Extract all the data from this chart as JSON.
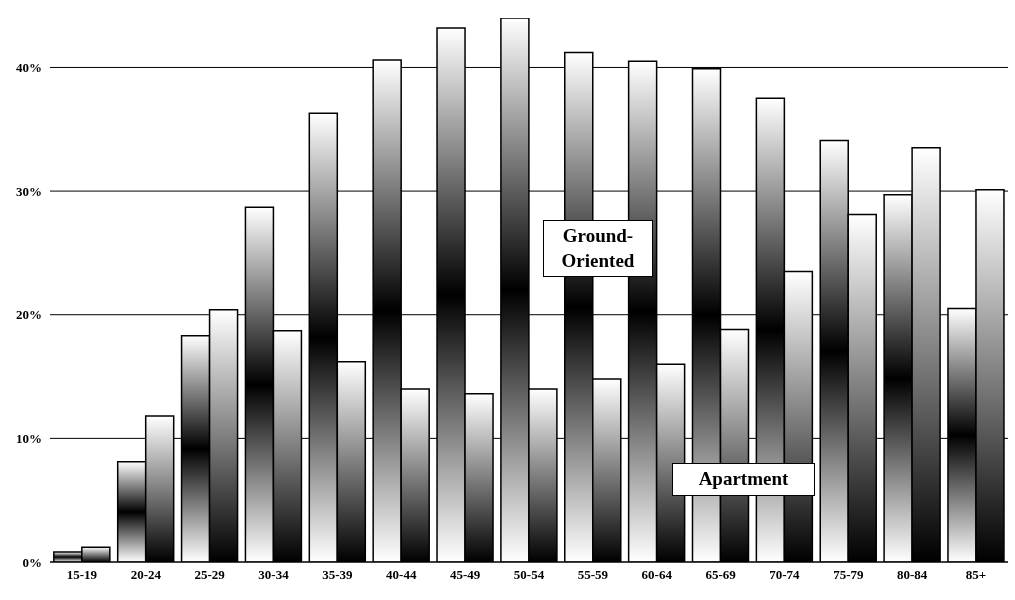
{
  "chart_data": {
    "type": "bar",
    "categories": [
      "15-19",
      "20-24",
      "25-29",
      "30-34",
      "35-39",
      "40-44",
      "45-49",
      "50-54",
      "55-59",
      "60-64",
      "65-69",
      "70-74",
      "75-79",
      "80-84",
      "85+"
    ],
    "series": [
      {
        "name": "Ground-Oriented",
        "color": "#000000",
        "values": [
          0.8,
          8.1,
          18.3,
          28.7,
          36.3,
          40.6,
          43.2,
          44.0,
          41.2,
          40.5,
          39.9,
          37.5,
          34.1,
          29.7,
          20.5
        ]
      },
      {
        "name": "Apartment",
        "color": "#000000",
        "values": [
          1.2,
          11.8,
          20.4,
          18.7,
          16.2,
          14.0,
          13.6,
          14.0,
          14.8,
          16.0,
          18.8,
          23.5,
          28.1,
          33.5,
          30.1
        ]
      }
    ],
    "ylim": [
      0,
      44
    ],
    "yticks": [
      {
        "value": 0,
        "label": "0%"
      },
      {
        "value": 10,
        "label": "10%"
      },
      {
        "value": 20,
        "label": "20%"
      },
      {
        "value": 30,
        "label": "30%"
      },
      {
        "value": 40,
        "label": "40%"
      }
    ],
    "grid": "y"
  }
}
